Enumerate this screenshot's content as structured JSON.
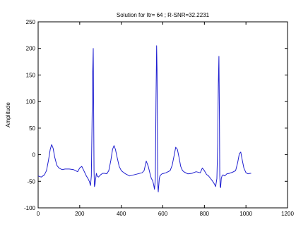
{
  "chart_data": {
    "type": "line",
    "title": "Solution for Itr= 64 ;    R-SNR=32.2231",
    "xlabel": "",
    "ylabel": "Amplitude",
    "xlim": [
      0,
      1200
    ],
    "ylim": [
      -100,
      250
    ],
    "xticks": [
      0,
      200,
      400,
      600,
      800,
      1000,
      1200
    ],
    "yticks": [
      -100,
      -50,
      0,
      50,
      100,
      150,
      200,
      250
    ],
    "xtick_labels": [
      "0",
      "200",
      "400",
      "600",
      "800",
      "1000",
      "1200"
    ],
    "ytick_labels": [
      "-100",
      "-50",
      "0",
      "50",
      "100",
      "150",
      "200",
      "250"
    ],
    "grid": false,
    "series": [
      {
        "color": "#1f1fd0",
        "x": [
          0,
          15,
          30,
          40,
          50,
          58,
          65,
          72,
          80,
          90,
          100,
          115,
          130,
          150,
          170,
          190,
          200,
          210,
          220,
          232,
          240,
          246,
          252,
          256,
          259,
          262,
          265,
          267,
          269,
          271,
          274,
          277,
          280,
          284,
          290,
          300,
          310,
          320,
          330,
          340,
          350,
          358,
          365,
          372,
          380,
          390,
          400,
          410,
          420,
          440,
          460,
          480,
          500,
          510,
          520,
          530,
          540,
          545,
          550,
          555,
          560,
          564,
          567,
          570,
          572,
          574,
          576,
          578,
          580,
          583,
          586,
          590,
          596,
          605,
          615,
          625,
          635,
          645,
          655,
          662,
          670,
          678,
          686,
          695,
          705,
          720,
          740,
          760,
          780,
          790,
          800,
          810,
          820,
          830,
          840,
          848,
          854,
          860,
          864,
          867,
          870,
          872,
          874,
          876,
          878,
          881,
          885,
          890,
          898,
          908,
          920,
          935,
          950,
          960,
          968,
          975,
          982,
          990,
          1000,
          1010,
          1020,
          1025
        ],
        "values": [
          -40,
          -42,
          -38,
          -30,
          -10,
          10,
          19,
          12,
          -5,
          -20,
          -25,
          -28,
          -27,
          -27,
          -28,
          -32,
          -25,
          -22,
          -30,
          -40,
          -45,
          -50,
          -58,
          -40,
          50,
          150,
          200,
          100,
          -30,
          -60,
          -55,
          -45,
          -35,
          -40,
          -42,
          -38,
          -35,
          -35,
          -36,
          -30,
          -10,
          10,
          17,
          10,
          -5,
          -22,
          -30,
          -33,
          -36,
          -40,
          -38,
          -36,
          -34,
          -30,
          -12,
          -22,
          -38,
          -45,
          -48,
          -55,
          -65,
          -45,
          100,
          205,
          160,
          20,
          -55,
          -70,
          -60,
          -45,
          -40,
          -38,
          -36,
          -35,
          -34,
          -32,
          -30,
          -20,
          0,
          14,
          10,
          -5,
          -22,
          -30,
          -33,
          -36,
          -35,
          -32,
          -34,
          -25,
          -30,
          -37,
          -40,
          -45,
          -50,
          -55,
          -60,
          -45,
          20,
          130,
          185,
          90,
          -40,
          -60,
          -62,
          -45,
          -40,
          -38,
          -40,
          -36,
          -35,
          -33,
          -30,
          -15,
          2,
          5,
          -10,
          -25,
          -34,
          -36,
          -35,
          -35
        ]
      }
    ]
  }
}
